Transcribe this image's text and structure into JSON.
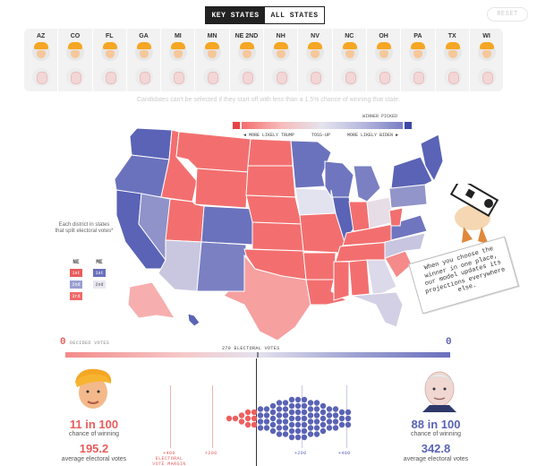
{
  "toggle": {
    "key_states": "KEY STATES",
    "all_states": "ALL STATES"
  },
  "reset_label": "RESET",
  "states": [
    "AZ",
    "CO",
    "FL",
    "GA",
    "MI",
    "MN",
    "NE 2ND",
    "NH",
    "NV",
    "NC",
    "OH",
    "PA",
    "TX",
    "WI"
  ],
  "note": "Candidates can't be selected if they start off with less than a 1.5% chance of winning that state.",
  "legend": {
    "winner_picked": "WINNER PICKED",
    "more_likely_trump": "◄ MORE LIKELY TRUMP",
    "toss_up": "TOSS-UP",
    "more_likely_biden": "MORE LIKELY BIDEN ►",
    "colors": {
      "trump": "#f05a5a",
      "biden": "#5b64b8",
      "tossup": "#e6e6ee"
    }
  },
  "district_key": {
    "title": "Each district in states that split electoral votes*",
    "ne_label": "NE",
    "me_label": "ME",
    "ne": [
      "1st",
      "2nd",
      "3rd"
    ],
    "me": [
      "1st",
      "2nd"
    ]
  },
  "callout": "When you choose the winner in one place, our model updates its projections everywhere else.",
  "bottom": {
    "decided_votes": "DECIDED VOTES",
    "left_count": "0",
    "right_count": "0",
    "electoral_label": "270 ELECTORAL VOTES",
    "trump": {
      "chance": "11 in 100",
      "chance_label": "chance of winning",
      "avg": "195.2",
      "avg_label": "average electoral votes"
    },
    "biden": {
      "chance": "88 in 100",
      "chance_label": "chance of winning",
      "avg": "342.8",
      "avg_label": "average electoral votes"
    },
    "margin_label": "+400 ELECTORAL VOTE MARGIN",
    "ticks": [
      "+200",
      "+200",
      "+400"
    ]
  }
}
